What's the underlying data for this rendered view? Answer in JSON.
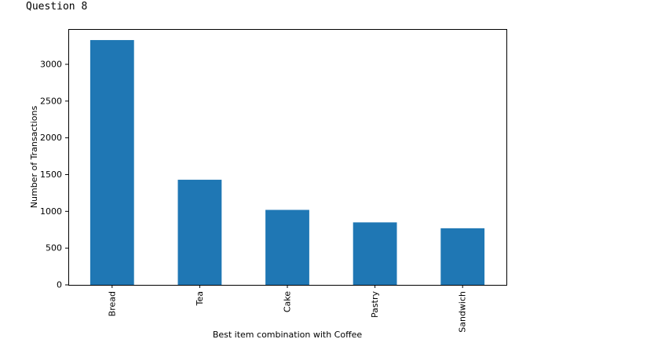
{
  "cell_output": {
    "text": "Question 8"
  },
  "chart_data": {
    "type": "bar",
    "categories": [
      "Bread",
      "Tea",
      "Cake",
      "Pastry",
      "Sandwich"
    ],
    "values": [
      3330,
      1430,
      1020,
      850,
      770
    ],
    "title": "",
    "xlabel": "Best item combination with Coffee",
    "ylabel": "Number of Transactions",
    "ylim": [
      0,
      3480
    ],
    "yticks": [
      0,
      500,
      1000,
      1500,
      2000,
      2500,
      3000
    ],
    "bar_color": "#1f77b4",
    "grid": false,
    "legend": "none",
    "x_tick_rotation": "vertical"
  }
}
